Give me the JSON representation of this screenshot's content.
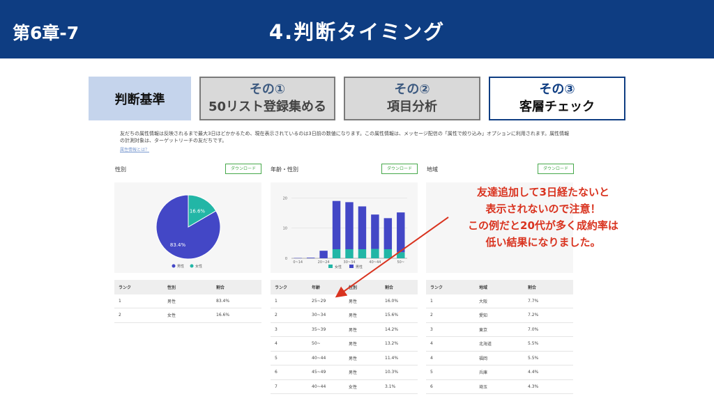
{
  "header": {
    "chapter": "第6章-7",
    "title": "4.判断タイミング"
  },
  "tabs": {
    "criteria": "判断基準",
    "tab1": {
      "line1": "その①",
      "line2": "50リスト登録集める"
    },
    "tab2": {
      "line1": "その②",
      "line2": "項目分析"
    },
    "tab3": {
      "line1": "その③",
      "line2": "客層チェック"
    }
  },
  "description": "友だちの属性情報は反映されるまで最大3日ほどかかるため、現在表示されているのは3日前の数値になります。この属性情報は、メッセージ配信の「属性で絞り込み」オプションに利用されます。属性情報の計測対象は、ターゲットリーチの友だちです。",
  "description_link": "属性情報とは？",
  "download_label": "ダウンロード",
  "panels": {
    "gender": {
      "title": "性別",
      "table_headers": [
        "ランク",
        "性別",
        "割合"
      ],
      "rows": [
        [
          "1",
          "男性",
          "83.4%"
        ],
        [
          "2",
          "女性",
          "16.6%"
        ]
      ]
    },
    "age": {
      "title": "年齢・性別",
      "table_headers": [
        "ランク",
        "年齢",
        "性別",
        "割合"
      ],
      "rows": [
        [
          "1",
          "25~29",
          "男性",
          "16.0%"
        ],
        [
          "2",
          "30~34",
          "男性",
          "15.6%"
        ],
        [
          "3",
          "35~39",
          "男性",
          "14.2%"
        ],
        [
          "4",
          "50~",
          "男性",
          "13.2%"
        ],
        [
          "5",
          "40~44",
          "男性",
          "11.4%"
        ],
        [
          "6",
          "45~49",
          "男性",
          "10.3%"
        ],
        [
          "7",
          "40~44",
          "女性",
          "3.1%"
        ]
      ]
    },
    "region": {
      "title": "地域",
      "table_headers": [
        "ランク",
        "地域",
        "割合"
      ],
      "rows": [
        [
          "1",
          "大阪",
          "7.7%"
        ],
        [
          "2",
          "愛知",
          "7.2%"
        ],
        [
          "3",
          "東京",
          "7.0%"
        ],
        [
          "4",
          "北海道",
          "5.5%"
        ],
        [
          "4",
          "福岡",
          "5.5%"
        ],
        [
          "5",
          "兵庫",
          "4.4%"
        ],
        [
          "6",
          "埼玉",
          "4.3%"
        ]
      ]
    }
  },
  "annotation": [
    "友達追加して3日経たないと",
    "表示されないので注意！",
    "この例だと20代が多く成約率は",
    "低い結果になりました。"
  ],
  "colors": {
    "header": "#0e3d82",
    "male": "#4347c6",
    "female": "#22b6a6",
    "annotation": "#d9331f"
  },
  "chart_data": [
    {
      "type": "pie",
      "labels": [
        "男性",
        "女性"
      ],
      "values": [
        83.4,
        16.6
      ],
      "value_labels": [
        "83.4%",
        "16.6%"
      ],
      "legend": [
        "男性",
        "女性"
      ]
    },
    {
      "type": "bar",
      "stacked": true,
      "categories": [
        "0~14",
        "",
        "20~24",
        "",
        "30~34",
        "",
        "40~44",
        "",
        "50~"
      ],
      "series": [
        {
          "name": "女性",
          "values": [
            0,
            0,
            0,
            3.0,
            3.0,
            3.0,
            3.1,
            3.0,
            2.0
          ]
        },
        {
          "name": "男性",
          "values": [
            0.1,
            0.2,
            2.5,
            16.0,
            15.6,
            14.2,
            11.4,
            10.3,
            13.2
          ]
        }
      ],
      "yticks": [
        0,
        10,
        20
      ],
      "ylim": [
        0,
        21
      ],
      "legend": [
        "女性",
        "男性"
      ]
    }
  ]
}
